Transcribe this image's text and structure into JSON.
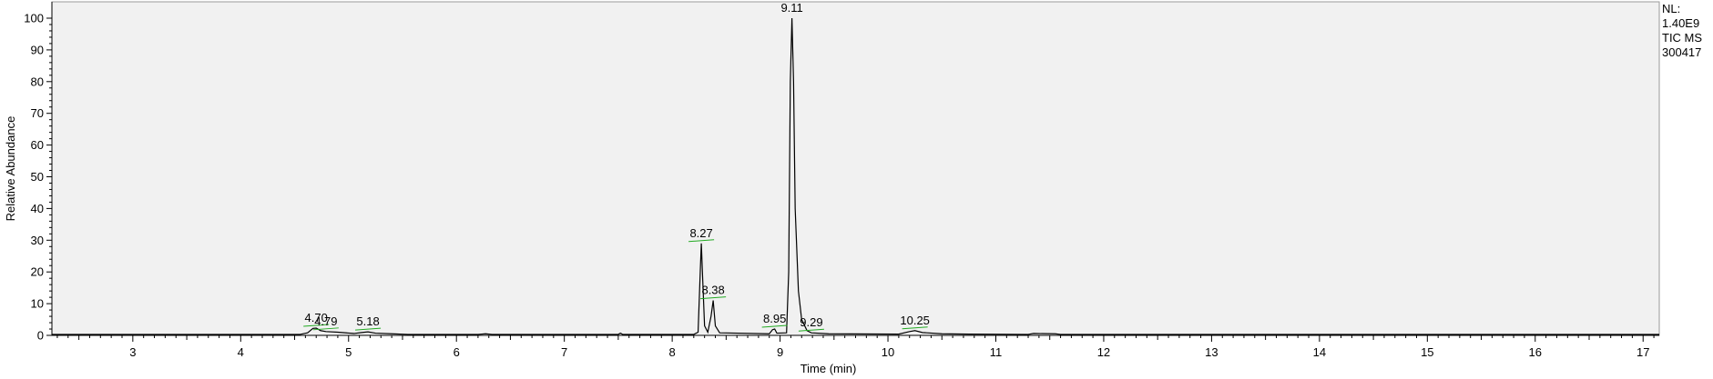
{
  "chart_data": {
    "type": "line",
    "title": "",
    "xlabel": "Time (min)",
    "ylabel": "Relative Abundance",
    "xlim": [
      2.25,
      17.15
    ],
    "ylim": [
      0,
      100
    ],
    "x_ticks": [
      "3",
      "4",
      "5",
      "6",
      "7",
      "8",
      "9",
      "10",
      "11",
      "12",
      "13",
      "14",
      "15",
      "16",
      "17"
    ],
    "y_ticks": [
      "0",
      "10",
      "20",
      "30",
      "40",
      "50",
      "60",
      "70",
      "80",
      "90",
      "100"
    ],
    "background": "#f1f1f1",
    "line_color": "#000000",
    "marker_color": "#22aa22",
    "peaks": [
      {
        "rt": 4.7,
        "label": "4.70",
        "abundance": 2.3
      },
      {
        "rt": 4.79,
        "label": "4.79",
        "abundance": 1.2
      },
      {
        "rt": 5.18,
        "label": "5.18",
        "abundance": 1.1
      },
      {
        "rt": 8.27,
        "label": "8.27",
        "abundance": 29.0
      },
      {
        "rt": 8.38,
        "label": "8.38",
        "abundance": 11.0
      },
      {
        "rt": 8.95,
        "label": "8.95",
        "abundance": 2.0
      },
      {
        "rt": 9.11,
        "label": "9.11",
        "abundance": 100.0
      },
      {
        "rt": 9.29,
        "label": "9.29",
        "abundance": 0.8
      },
      {
        "rt": 10.25,
        "label": "10.25",
        "abundance": 1.5
      }
    ],
    "trace": [
      [
        2.25,
        0.3
      ],
      [
        4.55,
        0.3
      ],
      [
        4.62,
        0.8
      ],
      [
        4.67,
        2.2
      ],
      [
        4.7,
        2.3
      ],
      [
        4.74,
        1.5
      ],
      [
        4.79,
        1.2
      ],
      [
        4.9,
        1.0
      ],
      [
        5.05,
        0.6
      ],
      [
        5.12,
        0.9
      ],
      [
        5.18,
        1.1
      ],
      [
        5.25,
        0.7
      ],
      [
        5.4,
        0.5
      ],
      [
        5.55,
        0.3
      ],
      [
        6.2,
        0.3
      ],
      [
        6.27,
        0.5
      ],
      [
        6.33,
        0.3
      ],
      [
        7.5,
        0.3
      ],
      [
        7.52,
        0.7
      ],
      [
        7.54,
        0.3
      ],
      [
        8.2,
        0.3
      ],
      [
        8.24,
        1.0
      ],
      [
        8.26,
        20.0
      ],
      [
        8.27,
        29.0
      ],
      [
        8.28,
        20.0
      ],
      [
        8.3,
        3.0
      ],
      [
        8.33,
        1.0
      ],
      [
        8.36,
        6.0
      ],
      [
        8.38,
        11.0
      ],
      [
        8.4,
        3.0
      ],
      [
        8.44,
        0.8
      ],
      [
        8.9,
        0.5
      ],
      [
        8.93,
        1.8
      ],
      [
        8.95,
        2.0
      ],
      [
        8.97,
        0.7
      ],
      [
        9.06,
        0.8
      ],
      [
        9.08,
        20.0
      ],
      [
        9.095,
        80.0
      ],
      [
        9.11,
        100.0
      ],
      [
        9.125,
        80.0
      ],
      [
        9.14,
        40.0
      ],
      [
        9.17,
        14.0
      ],
      [
        9.2,
        5.0
      ],
      [
        9.25,
        1.5
      ],
      [
        9.29,
        0.8
      ],
      [
        9.45,
        0.5
      ],
      [
        10.1,
        0.4
      ],
      [
        10.2,
        1.2
      ],
      [
        10.25,
        1.5
      ],
      [
        10.32,
        0.9
      ],
      [
        10.5,
        0.5
      ],
      [
        10.75,
        0.4
      ],
      [
        11.3,
        0.3
      ],
      [
        11.35,
        0.6
      ],
      [
        11.55,
        0.5
      ],
      [
        11.6,
        0.3
      ],
      [
        17.15,
        0.3
      ]
    ]
  },
  "info": {
    "nl_label": "NL:",
    "nl_value": "1.40E9",
    "scan": "TIC  MS",
    "file": "300417"
  }
}
